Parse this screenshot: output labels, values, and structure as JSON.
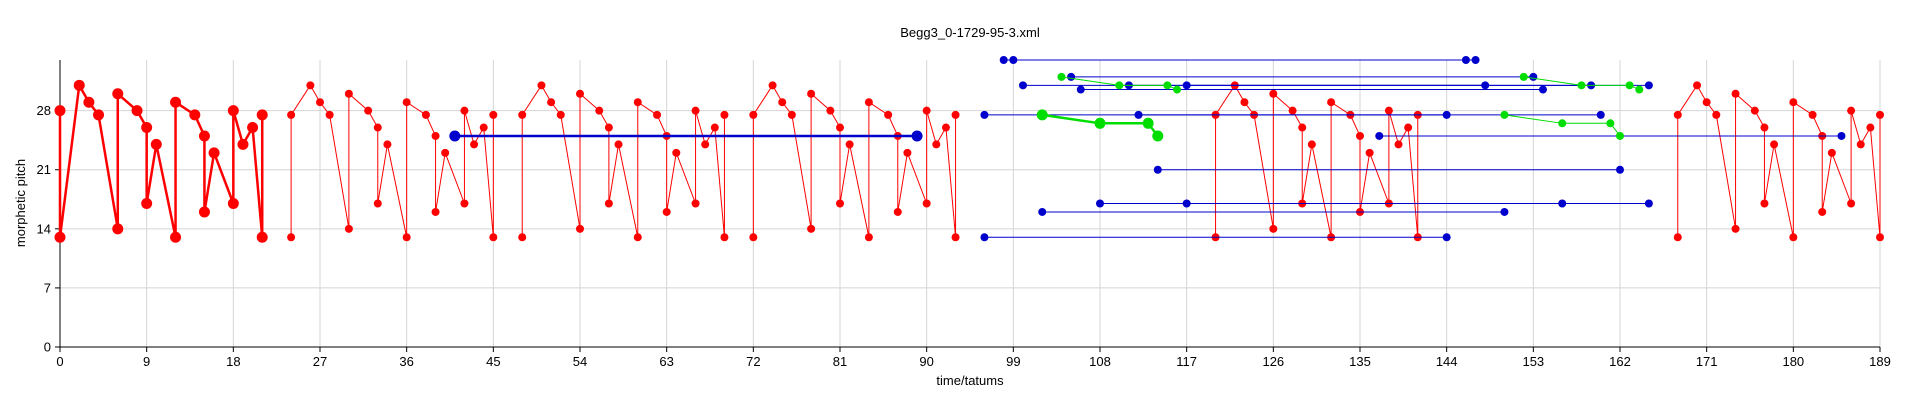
{
  "chart_data": {
    "type": "scatter",
    "title": "Begg3_0-1729-95-3.xml",
    "xlabel": "time/tatums",
    "ylabel": "morphetic pitch",
    "xlim": [
      0,
      189
    ],
    "ylim": [
      0,
      34
    ],
    "xticks": [
      "0",
      "9",
      "18",
      "27",
      "36",
      "45",
      "54",
      "63",
      "72",
      "81",
      "90",
      "99",
      "108",
      "117",
      "126",
      "135",
      "144",
      "153",
      "162",
      "171",
      "180",
      "189"
    ],
    "yticks": [
      "0",
      "7",
      "14",
      "21",
      "28"
    ],
    "grid": true,
    "colors": {
      "red": "#ff0000",
      "blue": "#0000cc",
      "green": "#00dd00"
    },
    "series": [
      {
        "color": "red",
        "kind": "polyline",
        "width": 2.5,
        "r": 5.5,
        "points": [
          [
            0,
            28
          ],
          [
            0,
            13
          ],
          [
            2,
            31
          ],
          [
            3,
            29
          ],
          [
            4,
            27.5
          ],
          [
            6,
            14
          ],
          [
            6,
            30
          ],
          [
            8,
            28
          ],
          [
            9,
            26
          ],
          [
            9,
            17
          ],
          [
            10,
            24
          ],
          [
            12,
            13
          ],
          [
            12,
            29
          ],
          [
            14,
            27.5
          ],
          [
            15,
            25
          ],
          [
            15,
            16
          ],
          [
            16,
            23
          ],
          [
            18,
            17
          ],
          [
            18,
            28
          ],
          [
            19,
            24
          ],
          [
            20,
            26
          ],
          [
            21,
            13
          ],
          [
            21,
            27.5
          ]
        ]
      },
      {
        "color": "red",
        "kind": "polyline",
        "width": 1,
        "r": 4,
        "points": [
          [
            24,
            13
          ],
          [
            24,
            27.5
          ],
          [
            26,
            31
          ],
          [
            27,
            29
          ],
          [
            28,
            27.5
          ],
          [
            30,
            14
          ],
          [
            30,
            30
          ],
          [
            32,
            28
          ],
          [
            33,
            26
          ],
          [
            33,
            17
          ],
          [
            34,
            24
          ],
          [
            36,
            13
          ],
          [
            36,
            29
          ],
          [
            38,
            27.5
          ],
          [
            39,
            25
          ],
          [
            39,
            16
          ],
          [
            40,
            23
          ],
          [
            42,
            17
          ],
          [
            42,
            28
          ],
          [
            43,
            24
          ],
          [
            44,
            26
          ],
          [
            45,
            13
          ],
          [
            45,
            27.5
          ]
        ]
      },
      {
        "color": "red",
        "kind": "polyline",
        "width": 1,
        "r": 4,
        "points": [
          [
            48,
            13
          ],
          [
            48,
            27.5
          ],
          [
            50,
            31
          ],
          [
            51,
            29
          ],
          [
            52,
            27.5
          ],
          [
            54,
            14
          ],
          [
            54,
            30
          ],
          [
            56,
            28
          ],
          [
            57,
            26
          ],
          [
            57,
            17
          ],
          [
            58,
            24
          ],
          [
            60,
            13
          ],
          [
            60,
            29
          ],
          [
            62,
            27.5
          ],
          [
            63,
            25
          ],
          [
            63,
            16
          ],
          [
            64,
            23
          ],
          [
            66,
            17
          ],
          [
            66,
            28
          ],
          [
            67,
            24
          ],
          [
            68,
            26
          ],
          [
            69,
            13
          ],
          [
            69,
            27.5
          ]
        ]
      },
      {
        "color": "red",
        "kind": "polyline",
        "width": 1,
        "r": 4,
        "points": [
          [
            72,
            13
          ],
          [
            72,
            27.5
          ],
          [
            74,
            31
          ],
          [
            75,
            29
          ],
          [
            76,
            27.5
          ],
          [
            78,
            14
          ],
          [
            78,
            30
          ],
          [
            80,
            28
          ],
          [
            81,
            26
          ],
          [
            81,
            17
          ],
          [
            82,
            24
          ],
          [
            84,
            13
          ],
          [
            84,
            29
          ],
          [
            86,
            27.5
          ],
          [
            87,
            25
          ],
          [
            87,
            16
          ],
          [
            88,
            23
          ],
          [
            90,
            17
          ],
          [
            90,
            28
          ],
          [
            91,
            24
          ],
          [
            92,
            26
          ],
          [
            93,
            13
          ],
          [
            93,
            27.5
          ]
        ]
      },
      {
        "color": "red",
        "kind": "polyline",
        "width": 1,
        "r": 4,
        "points": [
          [
            120,
            13
          ],
          [
            120,
            27.5
          ],
          [
            122,
            31
          ],
          [
            123,
            29
          ],
          [
            124,
            27.5
          ],
          [
            126,
            14
          ],
          [
            126,
            30
          ],
          [
            128,
            28
          ],
          [
            129,
            26
          ],
          [
            129,
            17
          ],
          [
            130,
            24
          ],
          [
            132,
            13
          ],
          [
            132,
            29
          ],
          [
            134,
            27.5
          ],
          [
            135,
            25
          ],
          [
            135,
            16
          ],
          [
            136,
            23
          ],
          [
            138,
            17
          ],
          [
            138,
            28
          ],
          [
            139,
            24
          ],
          [
            140,
            26
          ],
          [
            141,
            13
          ],
          [
            141,
            27.5
          ]
        ]
      },
      {
        "color": "red",
        "kind": "polyline",
        "width": 1,
        "r": 4,
        "points": [
          [
            168,
            13
          ],
          [
            168,
            27.5
          ],
          [
            170,
            31
          ],
          [
            171,
            29
          ],
          [
            172,
            27.5
          ],
          [
            174,
            14
          ],
          [
            174,
            30
          ],
          [
            176,
            28
          ],
          [
            177,
            26
          ],
          [
            177,
            17
          ],
          [
            178,
            24
          ],
          [
            180,
            13
          ],
          [
            180,
            29
          ],
          [
            182,
            27.5
          ],
          [
            183,
            25
          ],
          [
            183,
            16
          ],
          [
            184,
            23
          ],
          [
            186,
            17
          ],
          [
            186,
            28
          ],
          [
            187,
            24
          ],
          [
            188,
            26
          ],
          [
            189,
            13
          ],
          [
            189,
            27.5
          ]
        ]
      },
      {
        "color": "blue",
        "kind": "polyline",
        "width": 2.5,
        "r": 5.5,
        "points": [
          [
            41,
            25
          ],
          [
            89,
            25
          ]
        ]
      },
      {
        "color": "blue",
        "kind": "segments",
        "width": 1,
        "r": 4,
        "points": [
          [
            [
              98,
              34
            ],
            [
              146,
              34
            ]
          ],
          [
            [
              99,
              34
            ],
            [
              147,
              34
            ]
          ],
          [
            [
              100,
              31
            ],
            [
              148,
              31
            ]
          ],
          [
            [
              105,
              32
            ],
            [
              153,
              32
            ]
          ],
          [
            [
              111,
              31
            ],
            [
              159,
              31
            ]
          ],
          [
            [
              106,
              30.5
            ],
            [
              154,
              30.5
            ]
          ],
          [
            [
              117,
              31
            ],
            [
              165,
              31
            ]
          ],
          [
            [
              96,
              27.5
            ],
            [
              144,
              27.5
            ]
          ],
          [
            [
              112,
              27.5
            ],
            [
              160,
              27.5
            ]
          ],
          [
            [
              137,
              25
            ],
            [
              185,
              25
            ]
          ],
          [
            [
              114,
              21
            ],
            [
              162,
              21
            ]
          ],
          [
            [
              108,
              17
            ],
            [
              156,
              17
            ]
          ],
          [
            [
              117,
              17
            ],
            [
              165,
              17
            ]
          ],
          [
            [
              102,
              16
            ],
            [
              150,
              16
            ]
          ],
          [
            [
              96,
              13
            ],
            [
              144,
              13
            ]
          ]
        ]
      },
      {
        "color": "green",
        "kind": "polyline",
        "width": 2.5,
        "r": 5.5,
        "points": [
          [
            102,
            27.5
          ],
          [
            108,
            26.5
          ],
          [
            113,
            26.5
          ],
          [
            114,
            25
          ]
        ]
      },
      {
        "color": "green",
        "kind": "polyline",
        "width": 1,
        "r": 4,
        "points": [
          [
            104,
            32
          ],
          [
            110,
            31
          ],
          [
            115,
            31
          ],
          [
            116,
            30.5
          ]
        ]
      },
      {
        "color": "green",
        "kind": "polyline",
        "width": 1,
        "r": 4,
        "points": [
          [
            152,
            32
          ],
          [
            158,
            31
          ],
          [
            163,
            31
          ],
          [
            164,
            30.5
          ]
        ]
      },
      {
        "color": "green",
        "kind": "polyline",
        "width": 1,
        "r": 4,
        "points": [
          [
            150,
            27.5
          ],
          [
            156,
            26.5
          ],
          [
            161,
            26.5
          ],
          [
            162,
            25
          ]
        ]
      }
    ]
  }
}
